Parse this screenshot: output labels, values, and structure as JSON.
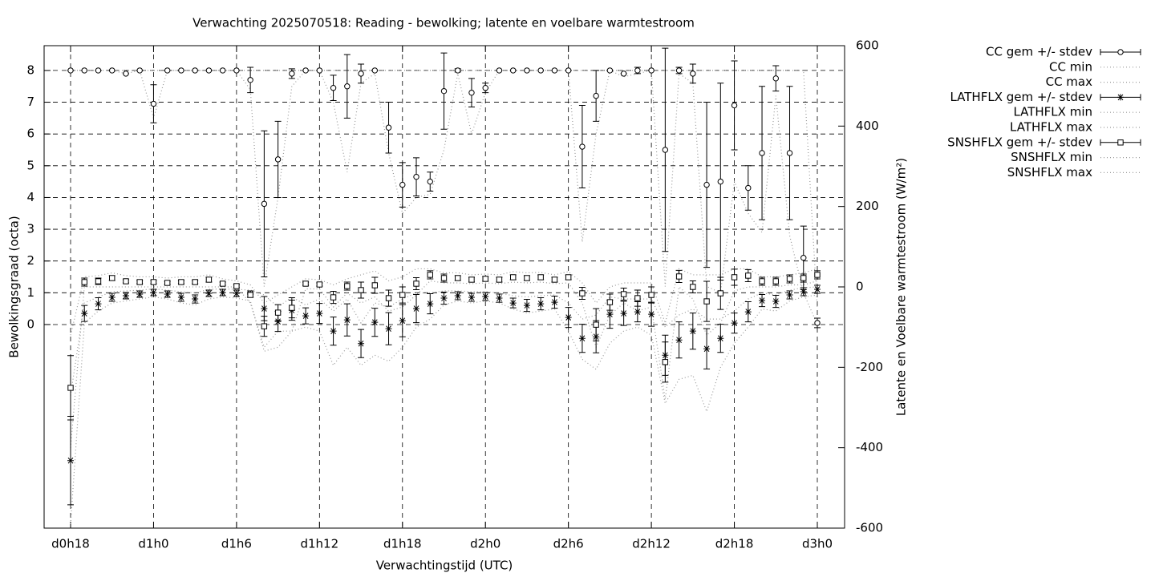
{
  "chart_data": {
    "type": "errorbars",
    "title": "Verwachting 2025070518: Reading - bewolking; latente en voelbare warmtestroom",
    "x_label": "Verwachtingstijd (UTC)",
    "y_label": "Bewolkingsgraad (octa)",
    "y2_label": "Latente en Voelbare warmtestroom (W/m²)",
    "categories": [
      "d0h18",
      null,
      null,
      null,
      null,
      null,
      "d1h0",
      null,
      null,
      null,
      null,
      null,
      "d1h6",
      null,
      null,
      null,
      null,
      null,
      "d1h12",
      null,
      null,
      null,
      null,
      null,
      "d1h18",
      null,
      null,
      null,
      null,
      null,
      "d2h0",
      null,
      null,
      null,
      null,
      null,
      "d2h6",
      null,
      null,
      null,
      null,
      null,
      "d2h12",
      null,
      null,
      null,
      null,
      null,
      "d2h18",
      null,
      null,
      null,
      null,
      null,
      "d3h0"
    ],
    "ylim": [
      -6.41,
      8.78
    ],
    "yticks": [
      0,
      1,
      2,
      3,
      4,
      5,
      6,
      7,
      8
    ],
    "y2lim": [
      -600,
      600
    ],
    "y2ticks": [
      -600,
      -400,
      -200,
      0,
      200,
      400,
      600
    ],
    "grid": true,
    "legend": "right",
    "series": [
      {
        "name": "CC gem +/- stdev",
        "style": "errorbars",
        "marker": "circle",
        "color": "#000000",
        "axis": "y",
        "values": [
          8,
          8,
          8,
          8,
          7.9,
          8,
          6.95,
          8,
          8,
          8,
          8,
          8,
          8,
          7.7,
          3.8,
          5.2,
          7.9,
          8,
          8,
          7.45,
          7.5,
          7.9,
          8,
          6.2,
          4.4,
          4.65,
          4.5,
          7.35,
          8,
          7.3,
          7.45,
          8,
          8,
          8,
          8,
          8,
          8,
          5.6,
          7.2,
          8,
          7.9,
          8,
          8,
          5.5,
          8,
          7.9,
          4.4,
          4.5,
          6.9,
          4.3,
          5.4,
          7.75,
          5.4,
          2.1,
          0.05
        ],
        "errors": [
          0,
          0,
          0,
          0,
          0,
          0,
          0.6,
          0,
          0,
          0,
          0,
          0,
          0,
          0.4,
          2.3,
          1.2,
          0.15,
          0,
          0,
          0.4,
          1,
          0.3,
          0,
          0.8,
          0.7,
          0.6,
          0.3,
          1.2,
          0.05,
          0.45,
          0.15,
          0,
          0,
          0,
          0,
          0,
          0,
          1.3,
          0.8,
          0,
          0,
          0.1,
          0,
          3.2,
          0.1,
          0.3,
          2.6,
          3.1,
          1.4,
          0.7,
          2.1,
          0.4,
          2.1,
          1,
          0.15
        ]
      },
      {
        "name": "CC min",
        "style": "dotted",
        "color": "#999999",
        "axis": "y",
        "values": [
          8,
          8,
          8,
          8,
          7.9,
          8,
          6.5,
          8,
          8,
          8,
          8,
          8,
          8,
          7.4,
          1.2,
          4,
          7.5,
          8,
          8,
          7,
          4.8,
          7.6,
          7.9,
          5.4,
          3.5,
          4,
          4.1,
          5.5,
          7.9,
          6,
          7.3,
          8,
          8,
          8,
          8,
          8,
          8,
          2.6,
          6,
          8,
          7.8,
          7.9,
          8,
          1.2,
          7.9,
          7.6,
          1.2,
          1,
          4.5,
          3.5,
          2.9,
          7.2,
          2.8,
          1,
          0
        ]
      },
      {
        "name": "CC max",
        "style": "dotted",
        "color": "#999999",
        "axis": "y",
        "values": [
          8,
          8,
          8,
          8,
          8,
          8,
          8,
          8,
          8,
          8,
          8,
          8,
          8,
          8,
          8,
          8,
          8,
          8,
          8,
          8,
          8,
          8,
          8,
          8,
          8,
          8,
          8,
          8,
          8,
          8,
          8,
          8,
          8,
          8,
          8,
          8,
          8,
          8,
          8,
          8,
          8,
          8,
          8,
          8,
          8,
          8,
          8,
          8,
          8,
          8,
          8,
          8,
          8,
          8,
          0.5
        ]
      },
      {
        "name": "LATHFLX gem +/- stdev",
        "style": "errorbars",
        "marker": "star",
        "color": "#000000",
        "axis": "y2",
        "values": [
          -432,
          -66,
          -42,
          -26,
          -22,
          -18,
          -14,
          -18,
          -26,
          -30,
          -16,
          -14,
          -16,
          -18,
          -54,
          -86,
          -58,
          -72,
          -66,
          -110,
          -82,
          -141,
          -88,
          -104,
          -84,
          -54,
          -42,
          -28,
          -22,
          -26,
          -24,
          -28,
          -40,
          -46,
          -42,
          -38,
          -76,
          -128,
          -124,
          -68,
          -66,
          -62,
          -68,
          -170,
          -132,
          -110,
          -154,
          -128,
          -90,
          -62,
          -34,
          -36,
          -20,
          -12,
          -6
        ],
        "errors": [
          110,
          20,
          15,
          10,
          8,
          8,
          8,
          8,
          10,
          10,
          8,
          8,
          8,
          8,
          30,
          25,
          25,
          20,
          25,
          35,
          40,
          35,
          35,
          40,
          40,
          35,
          25,
          15,
          10,
          10,
          10,
          10,
          12,
          15,
          15,
          15,
          25,
          35,
          40,
          35,
          30,
          25,
          30,
          50,
          45,
          45,
          50,
          35,
          25,
          25,
          15,
          15,
          10,
          10,
          10
        ]
      },
      {
        "name": "LATHFLX min",
        "style": "dotted",
        "color": "#999999",
        "axis": "y2",
        "values": [
          -590,
          -90,
          -60,
          -40,
          -35,
          -30,
          -25,
          -30,
          -40,
          -45,
          -30,
          -25,
          -28,
          -35,
          -160,
          -150,
          -110,
          -100,
          -110,
          -195,
          -150,
          -195,
          -170,
          -185,
          -150,
          -100,
          -80,
          -45,
          -35,
          -40,
          -35,
          -40,
          -55,
          -65,
          -60,
          -55,
          -110,
          -180,
          -205,
          -140,
          -110,
          -100,
          -120,
          -290,
          -230,
          -220,
          -310,
          -200,
          -140,
          -100,
          -55,
          -60,
          -35,
          -25,
          -20
        ]
      },
      {
        "name": "LATHFLX max",
        "style": "dotted",
        "color": "#999999",
        "axis": "y2",
        "values": [
          -270,
          -40,
          -25,
          -12,
          -10,
          -8,
          -5,
          -8,
          -12,
          -15,
          -6,
          -5,
          -6,
          -8,
          -20,
          -50,
          -25,
          -45,
          -30,
          -60,
          -30,
          -90,
          -40,
          -50,
          -30,
          -15,
          -15,
          -10,
          -10,
          -12,
          -12,
          -15,
          -22,
          -25,
          -22,
          -20,
          -40,
          -80,
          -70,
          -25,
          -30,
          -30,
          -30,
          -100,
          -70,
          -55,
          -80,
          -80,
          -60,
          -30,
          -15,
          -20,
          -8,
          -2,
          0
        ]
      },
      {
        "name": "SNSHFLX gem +/- stdev",
        "style": "errorbars",
        "marker": "square",
        "color": "#000000",
        "axis": "y2",
        "values": [
          -251,
          12,
          14,
          22,
          14,
          12,
          12,
          10,
          12,
          12,
          18,
          8,
          2,
          -20,
          -98,
          -64,
          -52,
          8,
          6,
          -26,
          2,
          -8,
          4,
          -28,
          -20,
          8,
          30,
          22,
          22,
          18,
          20,
          18,
          24,
          22,
          24,
          18,
          24,
          -16,
          -94,
          -38,
          -18,
          -28,
          -20,
          -187,
          26,
          0,
          -36,
          -16,
          24,
          28,
          14,
          14,
          20,
          22,
          30
        ],
        "errors": [
          80,
          10,
          8,
          6,
          4,
          4,
          4,
          4,
          4,
          4,
          6,
          4,
          4,
          6,
          25,
          20,
          25,
          4,
          4,
          15,
          10,
          20,
          20,
          20,
          20,
          15,
          10,
          10,
          6,
          6,
          6,
          6,
          6,
          6,
          6,
          6,
          6,
          15,
          40,
          20,
          15,
          20,
          20,
          50,
          15,
          15,
          50,
          40,
          20,
          15,
          10,
          10,
          10,
          10,
          10
        ]
      },
      {
        "name": "SNSHFLX min",
        "style": "dotted",
        "color": "#999999",
        "axis": "y2",
        "values": [
          -400,
          0,
          0,
          0,
          0,
          0,
          0,
          0,
          0,
          0,
          0,
          0,
          0,
          -40,
          -150,
          -110,
          -110,
          -5,
          -5,
          -50,
          -15,
          -40,
          -25,
          -60,
          -50,
          -20,
          15,
          10,
          10,
          8,
          10,
          8,
          12,
          10,
          12,
          8,
          10,
          -40,
          -150,
          -70,
          -40,
          -60,
          -50,
          -280,
          0,
          -30,
          -120,
          -90,
          -10,
          0,
          0,
          0,
          5,
          5,
          15
        ]
      },
      {
        "name": "SNSHFLX max",
        "style": "dotted",
        "color": "#999999",
        "axis": "y2",
        "values": [
          -120,
          25,
          28,
          35,
          28,
          25,
          25,
          22,
          25,
          25,
          30,
          20,
          15,
          5,
          -40,
          -20,
          0,
          20,
          18,
          5,
          20,
          30,
          40,
          15,
          25,
          45,
          45,
          35,
          35,
          30,
          32,
          30,
          38,
          35,
          36,
          30,
          38,
          10,
          -40,
          0,
          10,
          10,
          10,
          -90,
          45,
          30,
          30,
          30,
          45,
          45,
          25,
          25,
          30,
          35,
          45
        ]
      }
    ]
  }
}
